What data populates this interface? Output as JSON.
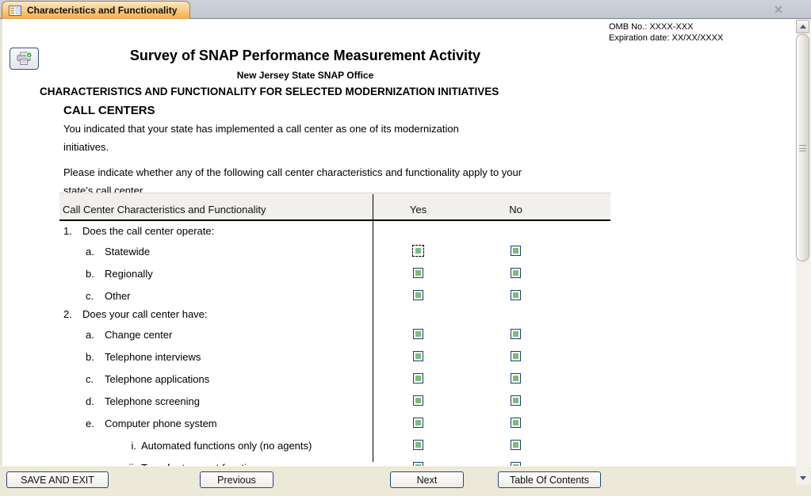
{
  "tab": {
    "title": "Characteristics and Functionality",
    "close_glyph": "✕"
  },
  "header": {
    "omb_line1": "OMB No.:  XXXX-XXX",
    "omb_line2": "Expiration date:  XX/XX/XXXX",
    "title": "Survey of SNAP Performance Measurement Activity",
    "subtitle": "New Jersey State SNAP Office",
    "section_heading": "CHARACTERISTICS AND FUNCTIONALITY FOR SELECTED MODERNIZATION INITIATIVES"
  },
  "content": {
    "topic_heading": "CALL CENTERS",
    "intro_paragraph": "You indicated that your state has implemented a call center as one of its modernization initiatives.",
    "instruction_paragraph": "Please indicate whether any of the following call center characteristics and functionality apply to your state’s call center."
  },
  "table": {
    "header": {
      "label": "Call Center Characteristics and Functionality",
      "yes": "Yes",
      "no": "No"
    },
    "rows": [
      {
        "type": "question",
        "prefix": "1.",
        "label": "Does the call center operate:"
      },
      {
        "type": "item",
        "indent": 1,
        "prefix": "a.",
        "label": "Statewide",
        "focused": true
      },
      {
        "type": "item",
        "indent": 1,
        "prefix": "b.",
        "label": "Regionally"
      },
      {
        "type": "item",
        "indent": 1,
        "prefix": "c.",
        "label": "Other"
      },
      {
        "type": "question",
        "prefix": "2.",
        "label": "Does your call center have:"
      },
      {
        "type": "item",
        "indent": 1,
        "prefix": "a.",
        "label": "Change center"
      },
      {
        "type": "item",
        "indent": 1,
        "prefix": "b.",
        "label": "Telephone interviews"
      },
      {
        "type": "item",
        "indent": 1,
        "prefix": "c.",
        "label": "Telephone applications"
      },
      {
        "type": "item",
        "indent": 1,
        "prefix": "d.",
        "label": "Telephone screening"
      },
      {
        "type": "item",
        "indent": 1,
        "prefix": "e.",
        "label": "Computer phone system"
      },
      {
        "type": "item",
        "indent": 2,
        "prefix": "i.",
        "label": "Automated functions only (no agents)"
      },
      {
        "type": "item",
        "indent": 2,
        "prefix": "ii.",
        "label": "Transfer to agent function"
      }
    ]
  },
  "footer": {
    "buttons": [
      {
        "label": "SAVE AND EXIT"
      },
      {
        "label": "Previous"
      },
      {
        "label": "Next"
      },
      {
        "label": "Table Of Contents"
      }
    ]
  },
  "colors": {
    "checkbox_green": "#7abd7e",
    "checkbox_border_navy": "#1d3f6e",
    "button_border_navy": "#27477b",
    "tab_orange": "#f3a94f",
    "footer_beige": "#ece9d8"
  }
}
